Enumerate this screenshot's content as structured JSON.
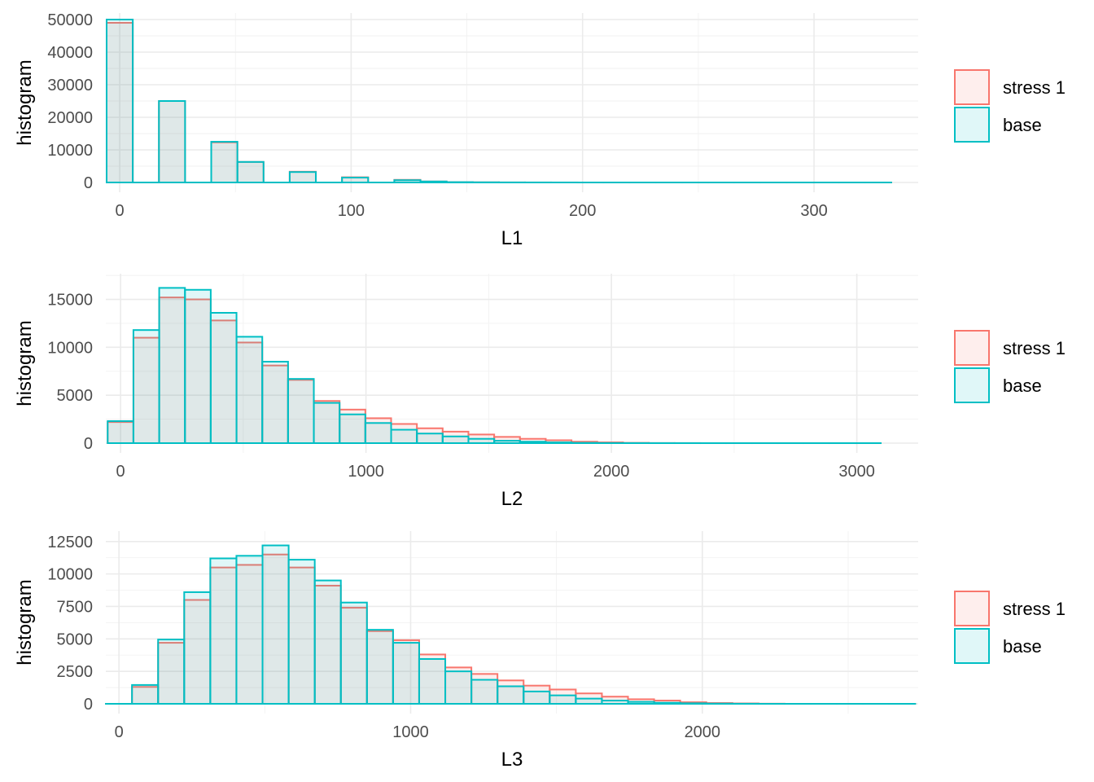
{
  "chart_data": [
    {
      "type": "bar",
      "xlabel": "L1",
      "ylabel": "histogram",
      "xlim": [
        -6,
        345
      ],
      "ylim": [
        0,
        50000
      ],
      "x_ticks": [
        0,
        100,
        200,
        300
      ],
      "y_ticks": [
        0,
        10000,
        20000,
        30000,
        40000,
        50000
      ],
      "grid": true,
      "bin_width": 11.3,
      "bin_start": -5.65,
      "series": [
        {
          "name": "stress 1",
          "color": "#F8766D",
          "values": [
            49000,
            0,
            25000,
            0,
            12300,
            6300,
            0,
            3300,
            0,
            1600,
            0,
            800,
            300,
            100,
            50,
            20,
            10,
            5,
            0,
            0,
            0,
            0,
            0,
            0,
            0,
            0,
            0,
            0,
            0,
            0
          ]
        },
        {
          "name": "base",
          "color": "#00BFC4",
          "values": [
            50000,
            0,
            25000,
            0,
            12500,
            6300,
            0,
            3200,
            0,
            1500,
            0,
            700,
            300,
            100,
            50,
            20,
            10,
            5,
            0,
            0,
            0,
            0,
            0,
            0,
            0,
            0,
            0,
            0,
            0,
            0
          ]
        }
      ],
      "legend": {
        "position": "right",
        "entries": [
          "stress 1",
          "base"
        ]
      }
    },
    {
      "type": "bar",
      "xlabel": "L2",
      "ylabel": "histogram",
      "xlim": [
        -60,
        3250
      ],
      "ylim": [
        0,
        17000
      ],
      "x_ticks": [
        0,
        1000,
        2000,
        3000
      ],
      "y_ticks": [
        0,
        5000,
        10000,
        15000
      ],
      "grid": true,
      "bin_width": 105,
      "bin_start": -52.5,
      "series": [
        {
          "name": "stress 1",
          "color": "#F8766D",
          "values": [
            2200,
            11000,
            15200,
            15000,
            12800,
            10500,
            8100,
            6600,
            4400,
            3500,
            2600,
            2000,
            1550,
            1200,
            900,
            650,
            450,
            300,
            150,
            80,
            30,
            10,
            5,
            0,
            0,
            0,
            0,
            0,
            0,
            0
          ]
        },
        {
          "name": "base",
          "color": "#00BFC4",
          "values": [
            2300,
            11800,
            16200,
            16000,
            13600,
            11100,
            8500,
            6700,
            4200,
            3000,
            2100,
            1400,
            1000,
            700,
            450,
            250,
            150,
            80,
            30,
            10,
            5,
            0,
            0,
            0,
            0,
            0,
            0,
            0,
            0,
            0
          ]
        }
      ],
      "legend": {
        "position": "right",
        "entries": [
          "stress 1",
          "base"
        ]
      }
    },
    {
      "type": "bar",
      "xlabel": "L3",
      "ylabel": "histogram",
      "xlim": [
        -45,
        2740
      ],
      "ylim": [
        0,
        12800
      ],
      "x_ticks": [
        0,
        1000,
        2000
      ],
      "y_ticks": [
        0,
        2500,
        5000,
        7500,
        10000,
        12500
      ],
      "grid": true,
      "bin_width": 89.5,
      "bin_start": -44.75,
      "series": [
        {
          "name": "stress 1",
          "color": "#F8766D",
          "values": [
            0,
            1300,
            4700,
            8000,
            10500,
            10700,
            11500,
            10500,
            9100,
            7400,
            5600,
            4900,
            3800,
            2800,
            2300,
            1800,
            1400,
            1100,
            800,
            550,
            350,
            250,
            120,
            60,
            30,
            10,
            0,
            0,
            0,
            0,
            0
          ]
        },
        {
          "name": "base",
          "color": "#00BFC4",
          "values": [
            0,
            1450,
            4950,
            8600,
            11200,
            11400,
            12200,
            11100,
            9500,
            7800,
            5700,
            4700,
            3450,
            2500,
            1850,
            1350,
            950,
            650,
            400,
            250,
            150,
            80,
            40,
            15,
            5,
            0,
            0,
            0,
            0,
            0,
            0
          ]
        }
      ],
      "legend": {
        "position": "right",
        "entries": [
          "stress 1",
          "base"
        ]
      }
    }
  ],
  "legend_labels": [
    "stress 1",
    "base"
  ]
}
